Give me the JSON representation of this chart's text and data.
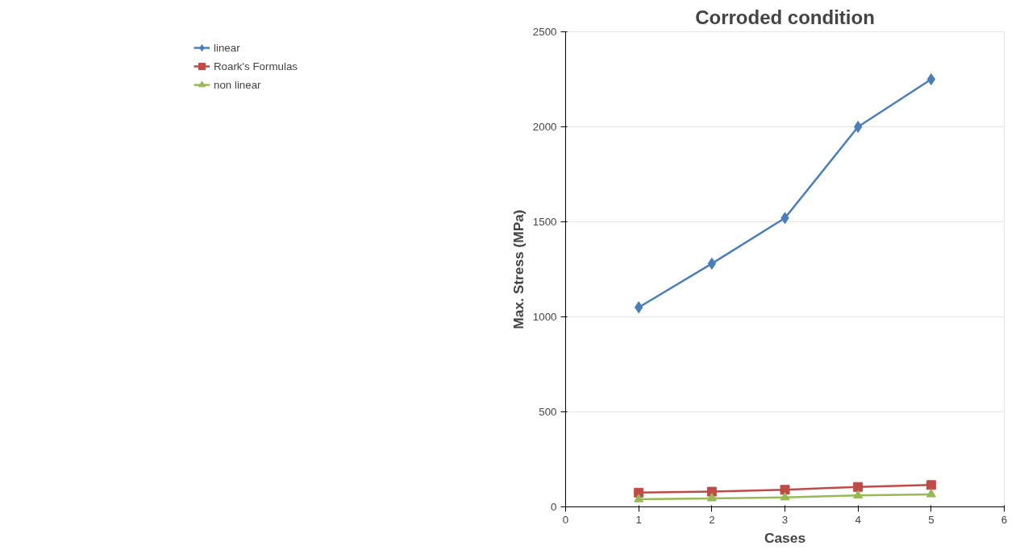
{
  "chart_data": {
    "type": "line",
    "title": "Corroded condition",
    "xlabel": "Cases",
    "ylabel": "Max. Stress (MPa)",
    "x": [
      1,
      2,
      3,
      4,
      5
    ],
    "series": [
      {
        "name": "linear",
        "color": "#4a7ebb",
        "marker": "diamond",
        "values": [
          1050,
          1280,
          1520,
          2000,
          2250
        ]
      },
      {
        "name": "Roark's Formulas",
        "color": "#be4b48",
        "marker": "square",
        "values": [
          75,
          80,
          90,
          105,
          115
        ]
      },
      {
        "name": "non linear",
        "color": "#98b954",
        "marker": "triangle",
        "values": [
          40,
          45,
          50,
          60,
          66
        ]
      }
    ],
    "xlim": [
      0,
      6
    ],
    "xticks": [
      0,
      1,
      2,
      3,
      4,
      5,
      6
    ],
    "ylim": [
      0,
      2500
    ],
    "yticks": [
      0,
      500,
      1000,
      1500,
      2000,
      2500
    ],
    "grid": "y",
    "legend": "left",
    "line_style": "solid"
  }
}
